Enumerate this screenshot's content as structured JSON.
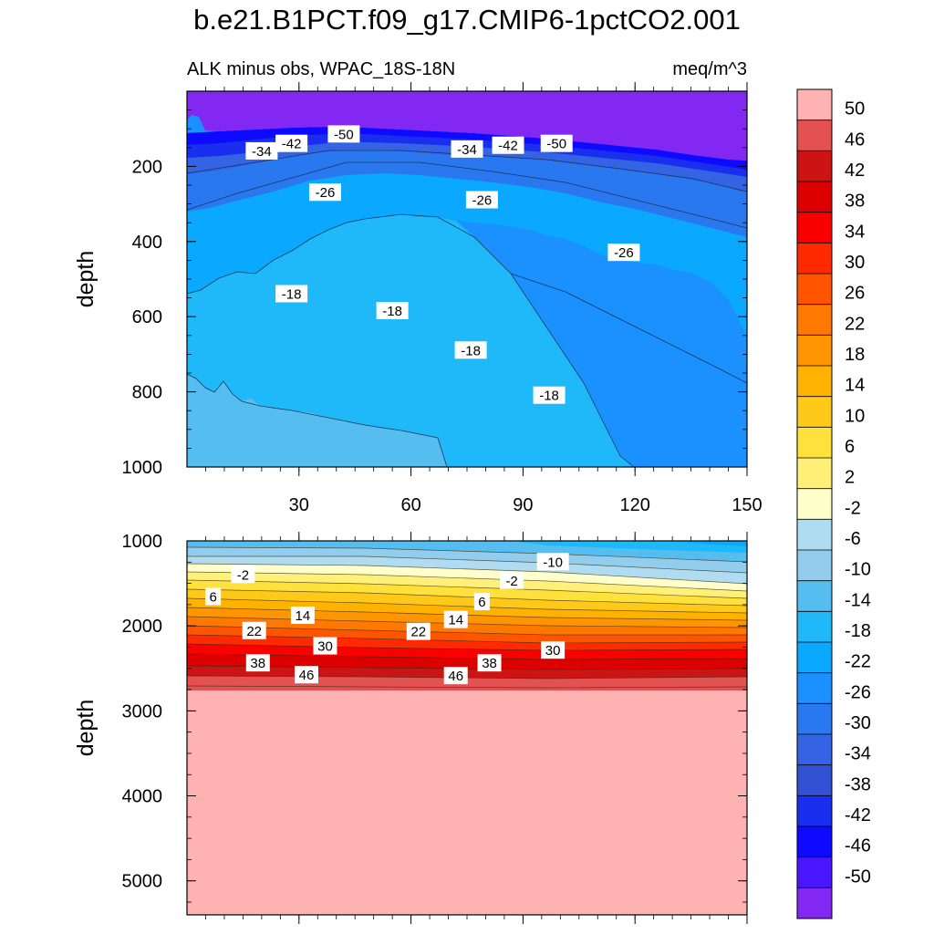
{
  "title": "b.e21.B1PCT.f09_g17.CMIP6-1pctCO2.001",
  "subtitle_left": "ALK minus obs, WPAC_18S-18N",
  "subtitle_right": "meq/m^3",
  "chart_data": {
    "type": "contour",
    "title": "b.e21.B1PCT.f09_g17.CMIP6-1pctCO2.001",
    "variable": "ALK minus obs, WPAC_18S-18N",
    "units": "meq/m^3",
    "x_range": [
      0,
      150
    ],
    "x_ticks": [
      30,
      60,
      90,
      120,
      150
    ],
    "panels": [
      {
        "name": "upper",
        "ylabel": "depth",
        "y_range": [
          0,
          1000
        ],
        "y_ticks": [
          200,
          400,
          600,
          800,
          1000
        ],
        "y_reversed": true,
        "contour_labels": [
          {
            "text": "-50",
            "x": 42,
            "y": 115
          },
          {
            "text": "-42",
            "x": 28,
            "y": 140
          },
          {
            "text": "-34",
            "x": 20,
            "y": 160
          },
          {
            "text": "-34",
            "x": 75,
            "y": 155
          },
          {
            "text": "-42",
            "x": 86,
            "y": 145
          },
          {
            "text": "-50",
            "x": 99,
            "y": 140
          },
          {
            "text": "-26",
            "x": 37,
            "y": 270
          },
          {
            "text": "-26",
            "x": 79,
            "y": 290
          },
          {
            "text": "-26",
            "x": 117,
            "y": 430
          },
          {
            "text": "-18",
            "x": 28,
            "y": 540
          },
          {
            "text": "-18",
            "x": 55,
            "y": 585
          },
          {
            "text": "-18",
            "x": 76,
            "y": 690
          },
          {
            "text": "-18",
            "x": 97,
            "y": 810
          }
        ]
      },
      {
        "name": "lower",
        "ylabel": "depth",
        "y_range": [
          1000,
          5400
        ],
        "y_ticks": [
          1000,
          2000,
          3000,
          4000,
          5000
        ],
        "y_reversed": true,
        "contour_labels": [
          {
            "text": "-10",
            "x": 98,
            "y": 1250
          },
          {
            "text": "-2",
            "x": 15,
            "y": 1400
          },
          {
            "text": "-2",
            "x": 87,
            "y": 1470
          },
          {
            "text": "6",
            "x": 7,
            "y": 1660
          },
          {
            "text": "6",
            "x": 79,
            "y": 1720
          },
          {
            "text": "14",
            "x": 31,
            "y": 1880
          },
          {
            "text": "14",
            "x": 72,
            "y": 1930
          },
          {
            "text": "22",
            "x": 18,
            "y": 2060
          },
          {
            "text": "22",
            "x": 62,
            "y": 2070
          },
          {
            "text": "30",
            "x": 37,
            "y": 2240
          },
          {
            "text": "30",
            "x": 98,
            "y": 2290
          },
          {
            "text": "38",
            "x": 19,
            "y": 2440
          },
          {
            "text": "38",
            "x": 81,
            "y": 2440
          },
          {
            "text": "46",
            "x": 32,
            "y": 2580
          },
          {
            "text": "46",
            "x": 72,
            "y": 2590
          }
        ]
      }
    ],
    "colorbar": {
      "labels": [
        "50",
        "46",
        "42",
        "38",
        "34",
        "30",
        "26",
        "22",
        "18",
        "14",
        "10",
        "6",
        "2",
        "-2",
        "-6",
        "-10",
        "-14",
        "-18",
        "-22",
        "-26",
        "-30",
        "-34",
        "-38",
        "-42",
        "-46",
        "-50"
      ],
      "colors": [
        "#ffb2b2",
        "#e35151",
        "#cc1414",
        "#dc0000",
        "#fa0000",
        "#ff2a00",
        "#ff5500",
        "#ff7800",
        "#ff9500",
        "#ffb300",
        "#ffc91a",
        "#ffe13c",
        "#fff07a",
        "#ffffcc",
        "#b0dcf2",
        "#92cdee",
        "#55bdef",
        "#1fb9fa",
        "#0aa8ff",
        "#1b90ff",
        "#2a78f0",
        "#3463e3",
        "#3252d4",
        "#1a2ef0",
        "#0e0aff",
        "#4a15ff",
        "#8228f2"
      ]
    }
  }
}
